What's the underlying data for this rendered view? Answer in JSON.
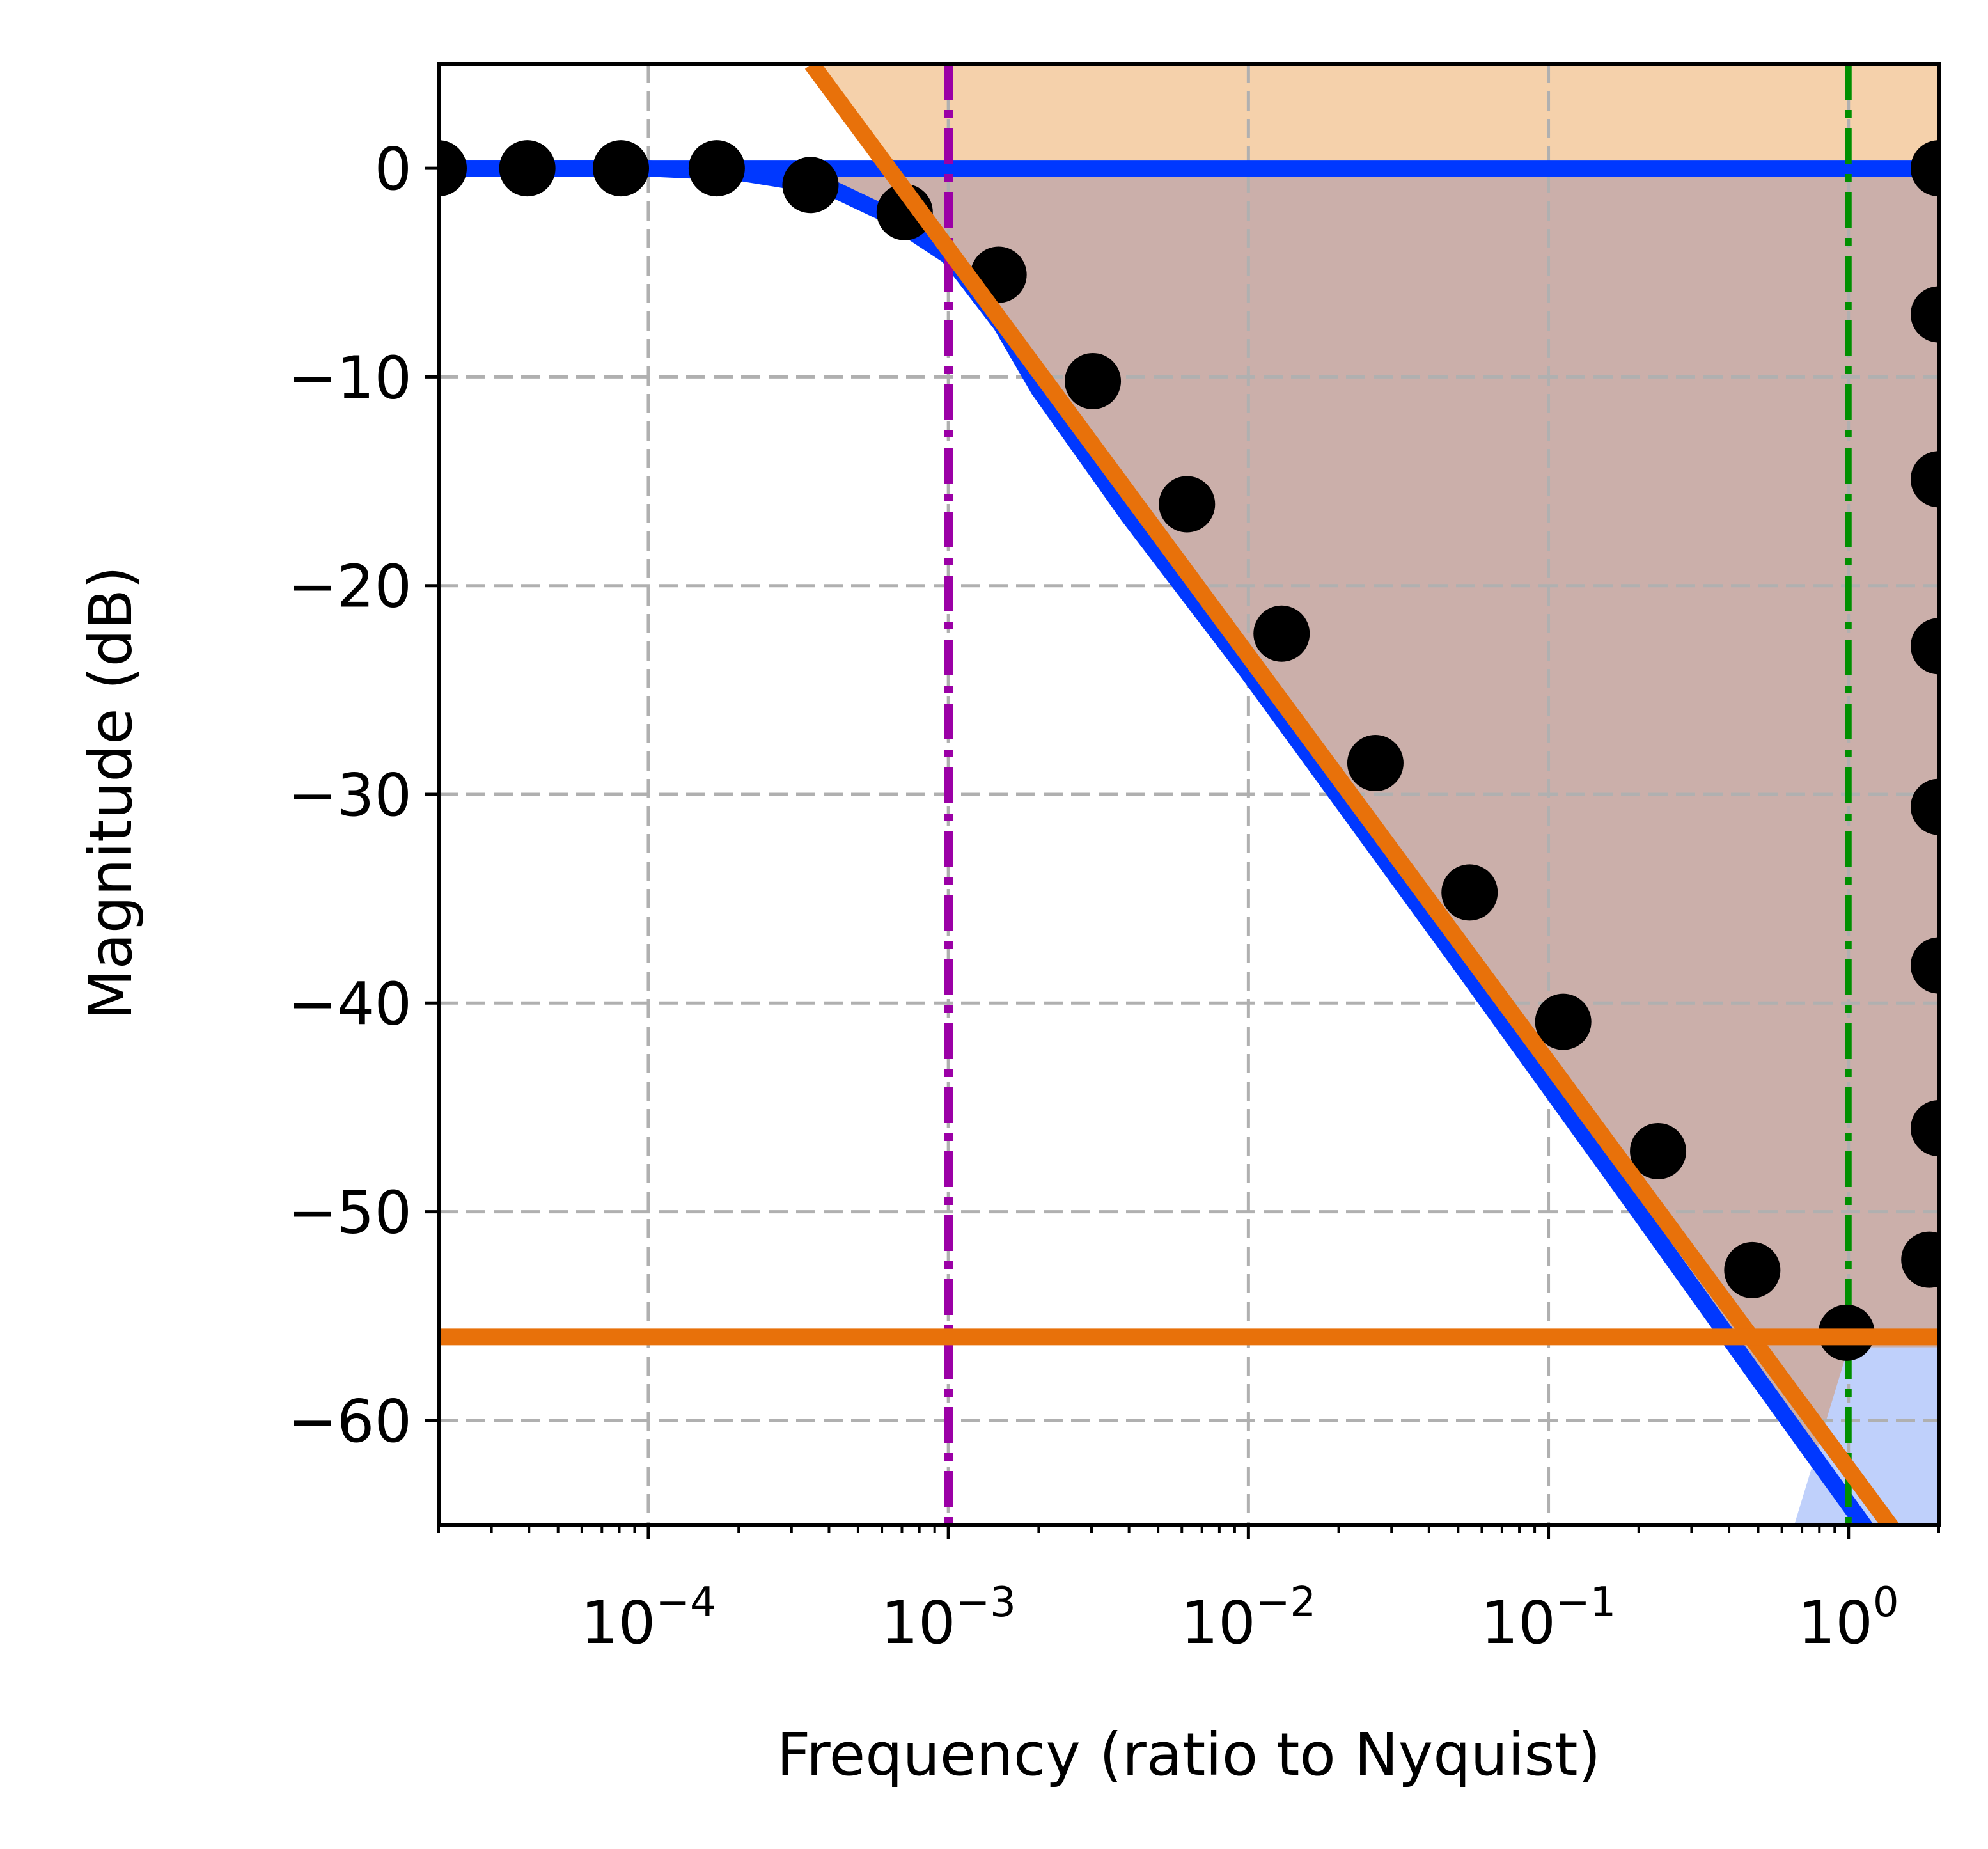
{
  "chart_data": {
    "type": "line",
    "title": "",
    "xlabel": "Frequency (ratio to Nyquist)",
    "ylabel": "Magnitude (dB)",
    "xscale": "log",
    "xlim": [
      2e-05,
      2.0
    ],
    "ylim": [
      -65,
      5
    ],
    "grid": true,
    "legend": "none",
    "x_ticks": [
      {
        "value": 0.0001,
        "base": "10",
        "exp": "−4"
      },
      {
        "value": 0.001,
        "base": "10",
        "exp": "−3"
      },
      {
        "value": 0.01,
        "base": "10",
        "exp": "−2"
      },
      {
        "value": 0.1,
        "base": "10",
        "exp": "−1"
      },
      {
        "value": 1,
        "base": "10",
        "exp": "0"
      }
    ],
    "y_ticks": [
      {
        "value": 0,
        "label": "0"
      },
      {
        "value": -10,
        "label": "−10"
      },
      {
        "value": -20,
        "label": "−20"
      },
      {
        "value": -30,
        "label": "−30"
      },
      {
        "value": -40,
        "label": "−40"
      },
      {
        "value": -50,
        "label": "−50"
      },
      {
        "value": -60,
        "label": "−60"
      }
    ],
    "series": [
      {
        "kind": "scatter",
        "color": "#000000",
        "x": [
          2e-05,
          3.95e-05,
          8.1e-05,
          0.000169,
          0.000347,
          0.000715,
          0.00147,
          0.00303,
          0.00624,
          0.0129,
          0.0265,
          0.0546,
          0.112,
          0.232,
          0.478,
          0.985,
          1.86,
          2.0,
          2.0,
          2.0,
          2.0,
          2.0,
          2.0,
          2.0
        ],
        "y": [
          0,
          0,
          0,
          0,
          -0.8,
          -2.1,
          -5.1,
          -10.2,
          -16.1,
          -22.3,
          -28.5,
          -34.7,
          -40.9,
          -47.1,
          -52.8,
          -55.8,
          -52.3,
          -46,
          -38.2,
          -30.6,
          -22.9,
          -14.9,
          -7.0,
          0
        ]
      },
      {
        "kind": "line",
        "color": "#0038ff",
        "x": [
          2e-05,
          0.0001,
          0.0002,
          0.0004,
          0.0006,
          0.001,
          0.0015,
          0.002,
          0.004,
          0.01,
          0.05,
          0.2,
          0.5,
          1.0,
          2.0
        ],
        "y": [
          0,
          0,
          -0.2,
          -0.9,
          -2.1,
          -4.2,
          -7.5,
          -10.6,
          -16.7,
          -24.2,
          -38,
          -50,
          -58,
          -64,
          -70
        ]
      },
      {
        "kind": "line",
        "color": "#0038ff",
        "x": [
          2e-05,
          2.0
        ],
        "y": [
          0,
          0
        ]
      },
      {
        "kind": "line",
        "color": "#e8710a",
        "x": [
          0.00035,
          1.6
        ],
        "y": [
          5,
          -66.3
        ]
      },
      {
        "kind": "line",
        "color": "#e8710a",
        "x": [
          2e-05,
          2.0
        ],
        "y": [
          -56,
          -56
        ]
      }
    ],
    "vlines": [
      {
        "x": 0.001,
        "color": "#9b00a6",
        "style": "dashdot"
      },
      {
        "x": 1.0,
        "color": "#008f00",
        "style": "dashdot"
      }
    ],
    "regions": [
      {
        "name": "above-asymptote",
        "color": "#f5d1ab"
      },
      {
        "name": "between-curves",
        "color": "#cbafaa"
      },
      {
        "name": "stopband-corner",
        "color": "#bfd0fb"
      }
    ]
  }
}
